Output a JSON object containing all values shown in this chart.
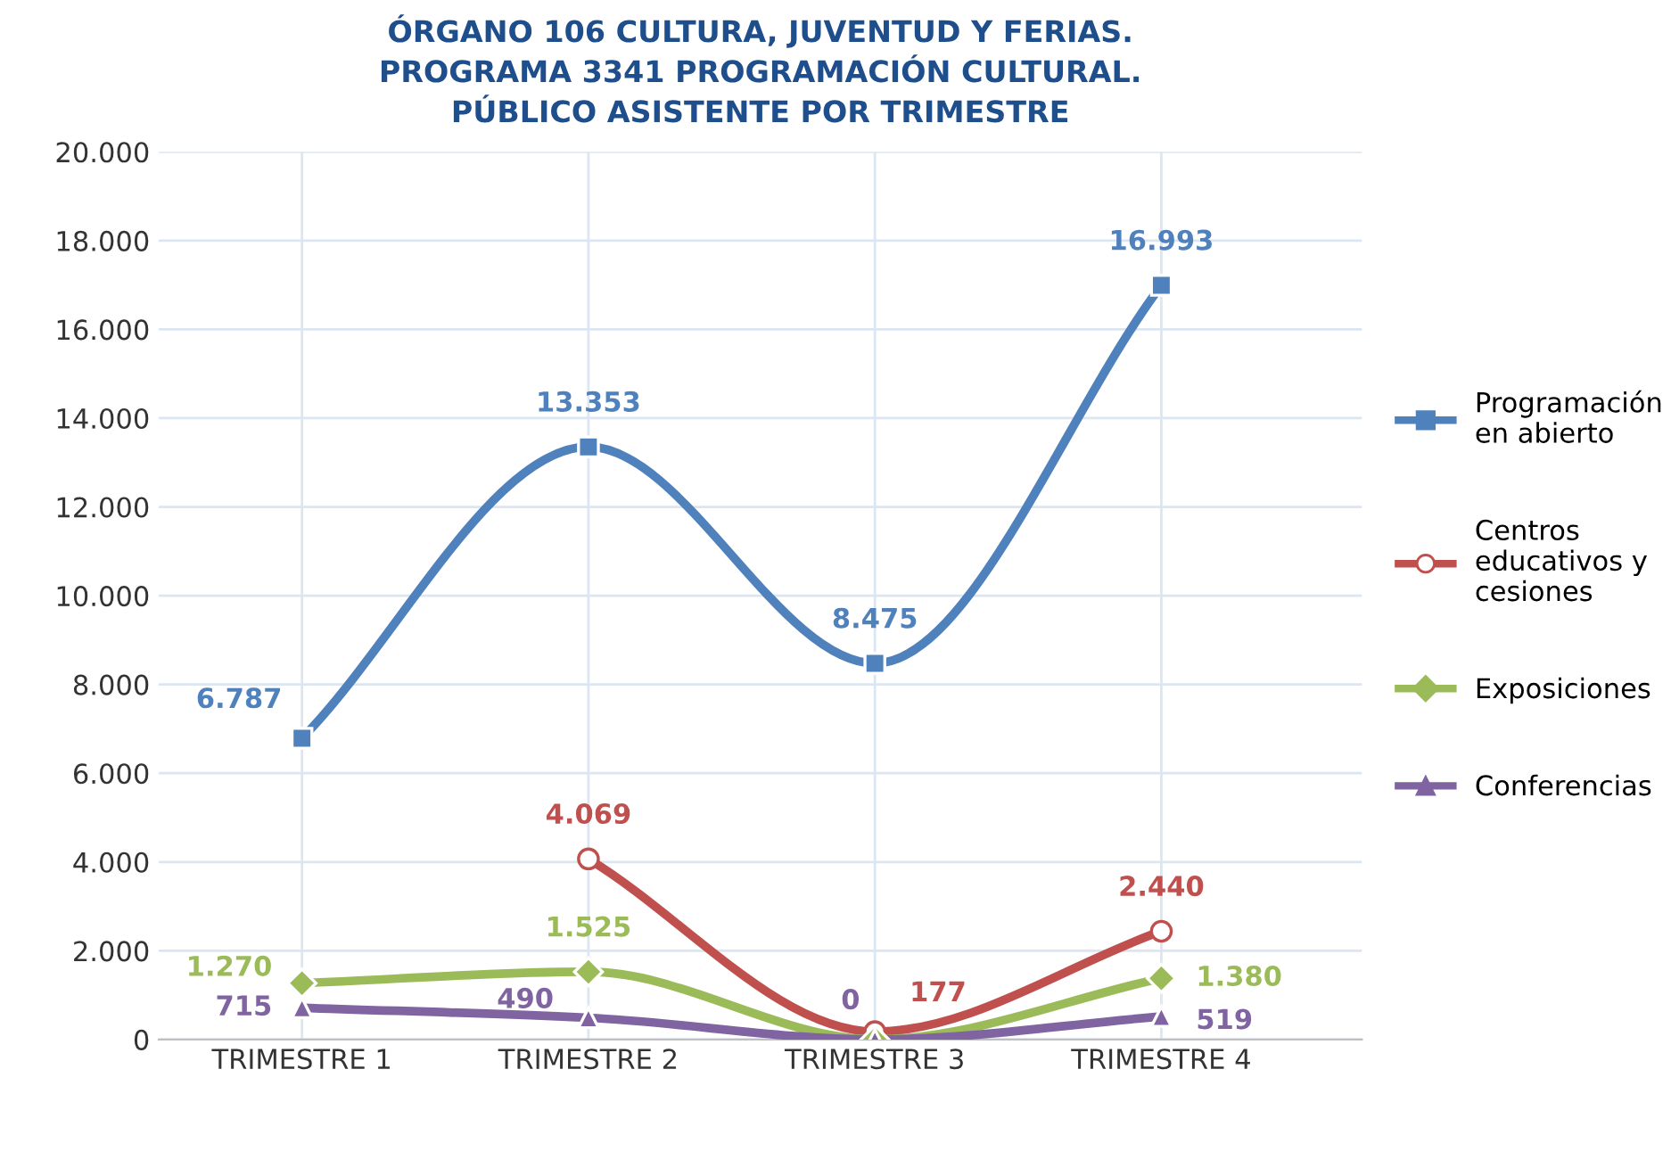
{
  "chart_data": {
    "type": "line",
    "title": "ÓRGANO 106 CULTURA, JUVENTUD Y FERIAS.\nPROGRAMA 3341 PROGRAMACIÓN CULTURAL.\nPÚBLICO ASISTENTE POR TRIMESTRE",
    "categories": [
      "TRIMESTRE 1",
      "TRIMESTRE 2",
      "TRIMESTRE 3",
      "TRIMESTRE 4"
    ],
    "series": [
      {
        "name": "Programación\nen abierto",
        "color": "#4f81bd",
        "marker": "square",
        "values": [
          6787,
          13353,
          8475,
          16993
        ],
        "value_labels": [
          "6.787",
          "13.353",
          "8.475",
          "16.993"
        ]
      },
      {
        "name": "Centros\neducativos y\ncesiones",
        "color": "#c0504d",
        "marker": "circle",
        "values": [
          null,
          4069,
          177,
          2440
        ],
        "value_labels": [
          null,
          "4.069",
          "177",
          "2.440"
        ]
      },
      {
        "name": "Exposiciones",
        "color": "#9bbb59",
        "marker": "diamond",
        "values": [
          1270,
          1525,
          0,
          1380
        ],
        "value_labels": [
          "1.270",
          "1.525",
          null,
          "1.380"
        ]
      },
      {
        "name": "Conferencias",
        "color": "#8064a2",
        "marker": "triangle",
        "values": [
          715,
          490,
          0,
          519
        ],
        "value_labels": [
          "715",
          "490",
          "0",
          "519"
        ]
      }
    ],
    "ylim": [
      0,
      20000
    ],
    "yticks": [
      {
        "value": 0,
        "label": "0"
      },
      {
        "value": 2000,
        "label": "2.000"
      },
      {
        "value": 4000,
        "label": "4.000"
      },
      {
        "value": 6000,
        "label": "6.000"
      },
      {
        "value": 8000,
        "label": "8.000"
      },
      {
        "value": 10000,
        "label": "10.000"
      },
      {
        "value": 12000,
        "label": "12.000"
      },
      {
        "value": 14000,
        "label": "14.000"
      },
      {
        "value": 16000,
        "label": "16.000"
      },
      {
        "value": 18000,
        "label": "18.000"
      },
      {
        "value": 20000,
        "label": "20.000"
      }
    ],
    "grid": true,
    "legend": "right",
    "line_style": "solid"
  }
}
